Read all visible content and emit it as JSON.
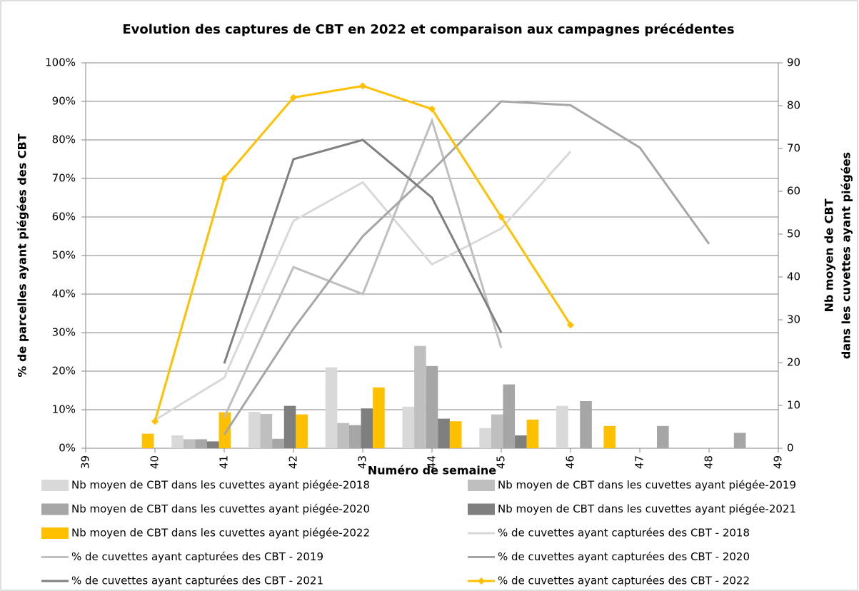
{
  "chart_data": {
    "type": "bar",
    "title": "Evolution des captures de CBT en 2022 et comparaison aux campagnes précédentes",
    "xlabel": "Numéro de semaine",
    "ylabel": "% de parcelles ayant piégées des CBT",
    "y2label": [
      "Nb moyen de CBT",
      "dans les cuvettes ayant piégées"
    ],
    "x": [
      40,
      41,
      42,
      43,
      44,
      45,
      46,
      47,
      48
    ],
    "xlim": [
      39,
      49
    ],
    "xticks": [
      39,
      40,
      41,
      42,
      43,
      44,
      45,
      46,
      47,
      48,
      49
    ],
    "ylim": [
      0,
      100
    ],
    "yticks": [
      {
        "value": 0,
        "label": "0%"
      },
      {
        "value": 10,
        "label": "10%"
      },
      {
        "value": 20,
        "label": "20%"
      },
      {
        "value": 30,
        "label": "30%"
      },
      {
        "value": 40,
        "label": "40%"
      },
      {
        "value": 50,
        "label": "50%"
      },
      {
        "value": 60,
        "label": "60%"
      },
      {
        "value": 70,
        "label": "70%"
      },
      {
        "value": 80,
        "label": "80%"
      },
      {
        "value": 90,
        "label": "90%"
      },
      {
        "value": 100,
        "label": "100%"
      }
    ],
    "y2lim": [
      0,
      90
    ],
    "y2ticks": [
      0,
      10,
      20,
      30,
      40,
      50,
      60,
      70,
      80,
      90
    ],
    "grid": true,
    "legend": "bottom",
    "series": [
      {
        "name": "Nb moyen de CBT dans les cuvettes ayant piégée-2018",
        "type": "bar",
        "axis": "y2",
        "color": "#d9d9d9",
        "values": [
          null,
          3,
          8.5,
          18.9,
          9.7,
          4.7,
          9.9,
          null,
          null
        ]
      },
      {
        "name": "Nb moyen de CBT dans les cuvettes ayant piégée-2019",
        "type": "bar",
        "axis": "y2",
        "color": "#bfbfbf",
        "values": [
          null,
          2.1,
          8,
          5.9,
          23.9,
          7.9,
          null,
          null,
          null
        ]
      },
      {
        "name": "Nb moyen de CBT dans les cuvettes ayant piégée-2020",
        "type": "bar",
        "axis": "y2",
        "color": "#a6a6a6",
        "values": [
          null,
          2.1,
          2.2,
          5.4,
          19.2,
          14.9,
          11,
          5.2,
          3.6
        ]
      },
      {
        "name": "Nb moyen de CBT dans les cuvettes ayant piégée-2021",
        "type": "bar",
        "axis": "y2",
        "color": "#7f7f7f",
        "values": [
          null,
          1.6,
          9.9,
          9.3,
          6.9,
          3,
          null,
          null,
          null
        ]
      },
      {
        "name": "Nb moyen de CBT dans les cuvettes ayant piégée-2022",
        "type": "bar",
        "axis": "y2",
        "color": "#ffc000",
        "values": [
          3.4,
          8.4,
          7.9,
          14.2,
          6.3,
          6.7,
          5.2,
          null,
          null
        ]
      },
      {
        "name": "% de cuvettes ayant capturées des CBT - 2018",
        "type": "line",
        "color": "#d9d9d9",
        "values": [
          7.3,
          18.3,
          59,
          69,
          47.7,
          57,
          77,
          null,
          null
        ]
      },
      {
        "name": "% de cuvettes ayant capturées des CBT - 2019",
        "type": "line",
        "color": "#bfbfbf",
        "values": [
          null,
          8,
          47,
          40,
          85,
          26,
          null,
          null,
          null
        ]
      },
      {
        "name": "% de cuvettes ayant capturées des CBT - 2020",
        "type": "line",
        "color": "#a6a6a6",
        "values": [
          null,
          3.5,
          31,
          55,
          72,
          90,
          89,
          78,
          53
        ]
      },
      {
        "name": "% de cuvettes ayant capturées des CBT - 2021",
        "type": "line",
        "color": "#808080",
        "values": [
          null,
          22,
          75,
          80,
          65,
          30,
          null,
          null,
          null
        ]
      },
      {
        "name": "% de cuvettes ayant capturées des CBT - 2022",
        "type": "line",
        "color": "#ffc000",
        "marker": "diamond",
        "values": [
          7,
          70,
          91,
          94,
          88,
          60,
          32,
          null,
          null
        ]
      }
    ]
  }
}
